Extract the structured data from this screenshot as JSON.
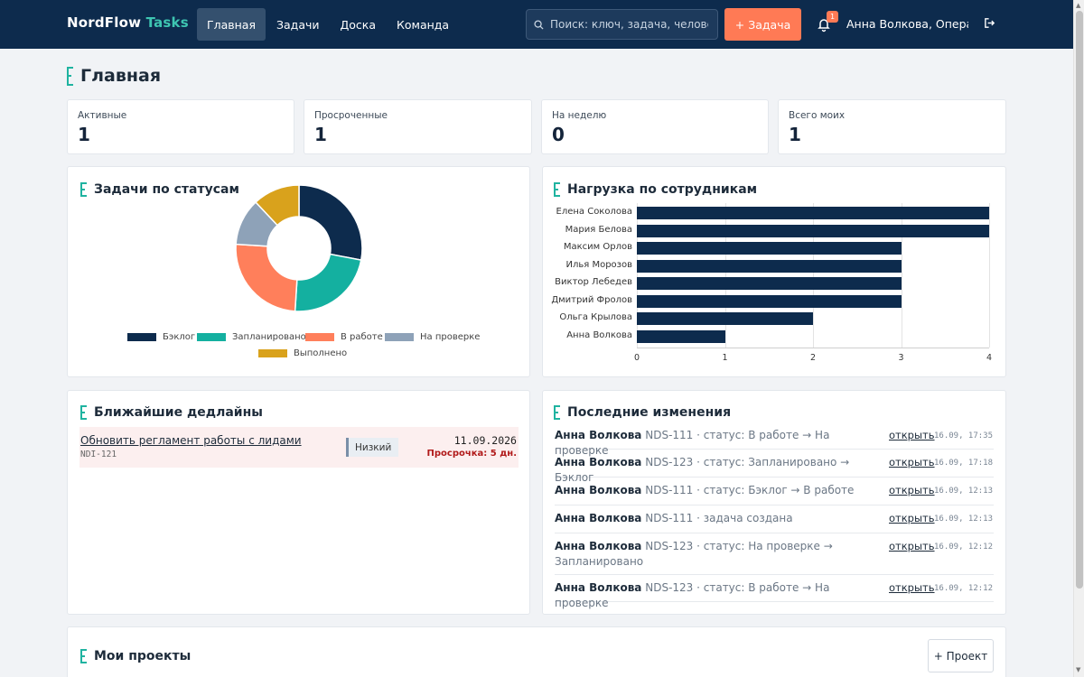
{
  "brand": {
    "name": "NordFlow",
    "accent": "Tasks"
  },
  "nav": [
    {
      "label": "Главная",
      "active": true
    },
    {
      "label": "Задачи"
    },
    {
      "label": "Доска"
    },
    {
      "label": "Команда"
    }
  ],
  "search": {
    "placeholder": "Поиск: ключ, задача, человек"
  },
  "header": {
    "add_task_label": "+ Задача",
    "notifications_count": "1",
    "user_name": "Анна Волкова, Операционный"
  },
  "page": {
    "title": "Главная"
  },
  "stats": [
    {
      "label": "Активные",
      "value": "1"
    },
    {
      "label": "Просроченные",
      "value": "1"
    },
    {
      "label": "На неделю",
      "value": "0"
    },
    {
      "label": "Всего моих",
      "value": "1"
    }
  ],
  "status_chart": {
    "title": "Задачи по статусам",
    "chart_data": {
      "type": "pie",
      "labels": [
        "Бэклог",
        "Запланировано",
        "В работе",
        "На проверке",
        "Выполнено"
      ],
      "values": [
        28,
        23,
        25,
        12,
        12
      ],
      "colors": [
        "#0d2b4d",
        "#14b0a0",
        "#ff7f5b",
        "#8ea2b8",
        "#d9a21c"
      ]
    }
  },
  "workload_chart": {
    "title": "Нагрузка по сотрудникам",
    "chart_data": {
      "type": "bar",
      "orientation": "horizontal",
      "categories": [
        "Елена Соколова",
        "Мария Белова",
        "Максим Орлов",
        "Илья Морозов",
        "Виктор Лебедев",
        "Дмитрий Фролов",
        "Ольга Крылова",
        "Анна Волкова"
      ],
      "values": [
        4,
        4,
        3,
        3,
        3,
        3,
        2,
        1
      ],
      "xlim": [
        0,
        4
      ],
      "xticks": [
        "0",
        "1",
        "2",
        "3",
        "4"
      ],
      "color": "#0d2b4d",
      "grid": true
    }
  },
  "deadlines": {
    "title": "Ближайшие дедлайны",
    "items": [
      {
        "title": "Обновить регламент работы с лидами",
        "key": "NDI-121",
        "priority": "Низкий",
        "date": "11.09.2026",
        "overdue": "Просрочка: 5 дн."
      }
    ]
  },
  "changes": {
    "title": "Последние изменения",
    "open_label": "открыть",
    "items": [
      {
        "user": "Анна Волкова",
        "text": "NDS-111 · статус: В работе → На проверке",
        "time": "16.09, 17:35"
      },
      {
        "user": "Анна Волкова",
        "text": "NDS-123 · статус: Запланировано → Бэклог",
        "time": "16.09, 17:18"
      },
      {
        "user": "Анна Волкова",
        "text": "NDS-111 · статус: Бэклог → В работе",
        "time": "16.09, 12:13"
      },
      {
        "user": "Анна Волкова",
        "text": "NDS-111 · задача создана",
        "time": "16.09, 12:13"
      },
      {
        "user": "Анна Волкова",
        "text": "NDS-123 · статус: На проверке → Запланировано",
        "time": "16.09, 12:12"
      },
      {
        "user": "Анна Волкова",
        "text": "NDS-123 · статус: В работе → На проверке",
        "time": "16.09, 12:12"
      }
    ]
  },
  "projects": {
    "title": "Мои проекты",
    "add_label": "+ Проект"
  }
}
